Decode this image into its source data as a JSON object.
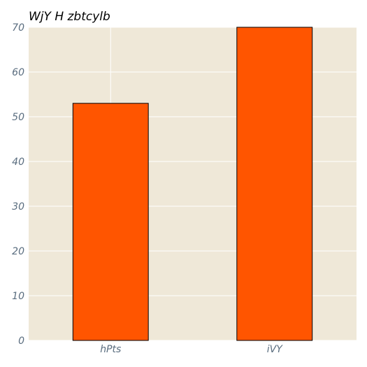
{
  "chart_data": {
    "type": "bar",
    "title": "WjY H zbtcylb",
    "xlabel": "",
    "ylabel": "",
    "categories": [
      "hPts",
      "iVY"
    ],
    "values": [
      53,
      70
    ],
    "ylim": [
      0,
      70
    ],
    "yticks": [
      0,
      10,
      20,
      30,
      40,
      50,
      60,
      70
    ],
    "grid": true,
    "colors": {
      "bar_fill": "#ff5500",
      "bar_edge": "#000000",
      "plot_background": "#efe8d8",
      "grid": "#ffffff",
      "tick_text": "#5a6d7f",
      "title_text": "#000000"
    }
  }
}
